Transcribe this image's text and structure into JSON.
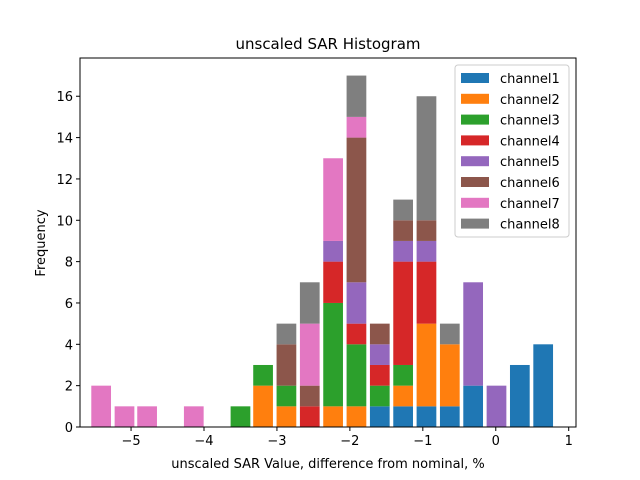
{
  "chart_data": {
    "type": "bar",
    "stacked": true,
    "title": "unscaled SAR Histogram",
    "xlabel": "unscaled SAR Value, difference from nominal, %",
    "ylabel": "Frequency",
    "xlim": [
      -5.7,
      1.1
    ],
    "ylim": [
      0,
      17.85
    ],
    "xticks": [
      -5,
      -4,
      -3,
      -2,
      -1,
      0,
      1
    ],
    "xtick_labels": [
      "−5",
      "−4",
      "−3",
      "−2",
      "−1",
      "0",
      "1"
    ],
    "yticks": [
      0,
      2,
      4,
      6,
      8,
      10,
      12,
      14,
      16
    ],
    "ytick_labels": [
      "0",
      "2",
      "4",
      "6",
      "8",
      "10",
      "12",
      "14",
      "16"
    ],
    "bin_width": 0.318,
    "x": [
      -5.41,
      -5.09,
      -4.78,
      -4.14,
      -3.5,
      -3.19,
      -2.87,
      -2.55,
      -2.23,
      -1.91,
      -1.59,
      -1.27,
      -0.95,
      -0.63,
      -0.31,
      0.01,
      0.33,
      0.65
    ],
    "series": [
      {
        "name": "channel1",
        "color": "#1f77b4",
        "values": [
          0,
          0,
          0,
          0,
          0,
          0,
          0,
          0,
          0,
          0,
          1,
          1,
          1,
          1,
          2,
          0,
          3,
          4
        ]
      },
      {
        "name": "channel2",
        "color": "#ff7f0e",
        "values": [
          0,
          0,
          0,
          0,
          0,
          2,
          1,
          0,
          1,
          1,
          0,
          1,
          4,
          3,
          0,
          0,
          0,
          0
        ]
      },
      {
        "name": "channel3",
        "color": "#2ca02c",
        "values": [
          0,
          0,
          0,
          0,
          1,
          1,
          1,
          0,
          5,
          3,
          1,
          1,
          0,
          0,
          0,
          0,
          0,
          0
        ]
      },
      {
        "name": "channel4",
        "color": "#d62728",
        "values": [
          0,
          0,
          0,
          0,
          0,
          0,
          0,
          1,
          2,
          1,
          1,
          5,
          3,
          0,
          0,
          0,
          0,
          0
        ]
      },
      {
        "name": "channel5",
        "color": "#9467bd",
        "values": [
          0,
          0,
          0,
          0,
          0,
          0,
          0,
          0,
          1,
          2,
          1,
          1,
          1,
          0,
          5,
          2,
          0,
          0
        ]
      },
      {
        "name": "channel6",
        "color": "#8c564b",
        "values": [
          0,
          0,
          0,
          0,
          0,
          0,
          2,
          1,
          0,
          7,
          1,
          1,
          1,
          0,
          0,
          0,
          0,
          0
        ]
      },
      {
        "name": "channel7",
        "color": "#e377c2",
        "values": [
          2,
          1,
          1,
          1,
          0,
          0,
          0,
          3,
          4,
          1,
          0,
          0,
          0,
          0,
          0,
          0,
          0,
          0
        ]
      },
      {
        "name": "channel8",
        "color": "#7f7f7f",
        "values": [
          0,
          0,
          0,
          0,
          0,
          0,
          1,
          2,
          0,
          2,
          0,
          1,
          6,
          1,
          0,
          0,
          0,
          0
        ]
      }
    ],
    "legend": "top-right",
    "grid": false
  }
}
